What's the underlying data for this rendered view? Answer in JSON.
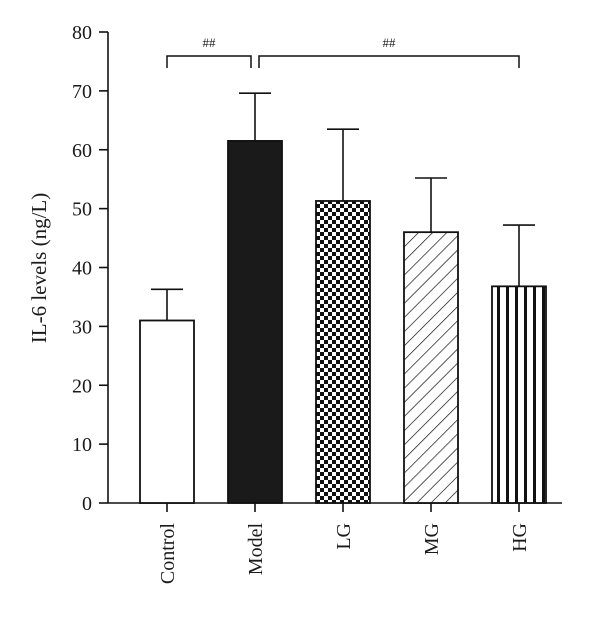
{
  "chart_data": {
    "type": "bar",
    "categories": [
      "Control",
      "Model",
      "LG",
      "MG",
      "HG"
    ],
    "values": [
      31,
      61.5,
      51.3,
      46,
      36.8
    ],
    "error_upper": [
      36.3,
      69.6,
      63.5,
      55.2,
      47.2
    ],
    "patterns": [
      "white",
      "black",
      "checker",
      "diagonal",
      "vertical"
    ],
    "ylabel": "IL-6 levels (ng/L)",
    "xlabel": "",
    "title": "",
    "ylim": [
      0,
      80
    ],
    "yticks": [
      0,
      10,
      20,
      30,
      40,
      50,
      60,
      70,
      80
    ],
    "significance": [
      {
        "label": "##",
        "from": "Control",
        "to": "Model"
      },
      {
        "label": "##",
        "from": "Model",
        "to": "HG"
      }
    ],
    "grid": false,
    "colors": {
      "bar_stroke": "#111111",
      "fill_dark": "#1a1a1a",
      "fill_light": "#ffffff"
    }
  }
}
